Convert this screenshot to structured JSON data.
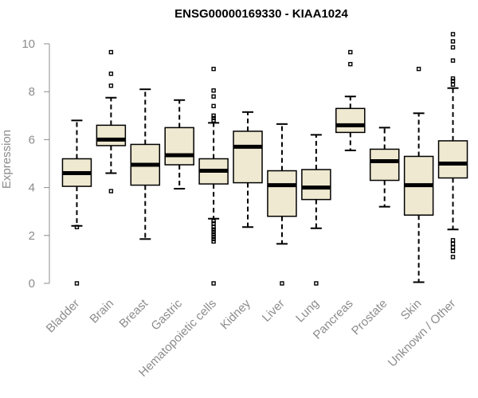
{
  "chart_data": {
    "type": "boxplot",
    "title": "ENSG00000169330 - KIAA1024",
    "ylabel": "Expression",
    "xlabel": "",
    "ylim": [
      0,
      10.4
    ],
    "yticks": [
      0,
      2,
      4,
      6,
      8,
      10
    ],
    "categories": [
      "Bladder",
      "Brain",
      "Breast",
      "Gastric",
      "Hematopoietic cells",
      "Kidney",
      "Liver",
      "Lung",
      "Pancreas",
      "Prostate",
      "Skin",
      "Unknown / Other"
    ],
    "boxes": [
      {
        "q1": 4.05,
        "median": 4.6,
        "q3": 5.2,
        "whisker_low": 2.4,
        "whisker_high": 6.8,
        "outliers": [
          0.0,
          2.35
        ]
      },
      {
        "q1": 5.75,
        "median": 6.0,
        "q3": 6.6,
        "whisker_low": 4.6,
        "whisker_high": 7.75,
        "outliers": [
          3.85,
          8.25,
          8.75,
          9.65
        ]
      },
      {
        "q1": 4.1,
        "median": 4.95,
        "q3": 5.8,
        "whisker_low": 1.85,
        "whisker_high": 8.1,
        "outliers": []
      },
      {
        "q1": 4.95,
        "median": 5.35,
        "q3": 6.5,
        "whisker_low": 3.95,
        "whisker_high": 7.65,
        "outliers": []
      },
      {
        "q1": 4.15,
        "median": 4.7,
        "q3": 5.2,
        "whisker_low": 2.7,
        "whisker_high": 6.7,
        "outliers": [
          0.0,
          1.75,
          1.85,
          1.95,
          2.05,
          2.15,
          2.25,
          2.35,
          2.5,
          2.6,
          6.8,
          6.9,
          7.0,
          7.4,
          7.8,
          8.05,
          8.95
        ]
      },
      {
        "q1": 4.2,
        "median": 5.7,
        "q3": 6.35,
        "whisker_low": 2.35,
        "whisker_high": 7.15,
        "outliers": []
      },
      {
        "q1": 2.8,
        "median": 4.1,
        "q3": 4.7,
        "whisker_low": 1.65,
        "whisker_high": 6.65,
        "outliers": [
          0.0
        ]
      },
      {
        "q1": 3.5,
        "median": 4.0,
        "q3": 4.75,
        "whisker_low": 2.3,
        "whisker_high": 6.2,
        "outliers": [
          0.0
        ]
      },
      {
        "q1": 6.3,
        "median": 6.6,
        "q3": 7.3,
        "whisker_low": 5.55,
        "whisker_high": 7.8,
        "outliers": [
          9.15,
          9.65
        ]
      },
      {
        "q1": 4.3,
        "median": 5.1,
        "q3": 5.6,
        "whisker_low": 3.2,
        "whisker_high": 6.5,
        "outliers": []
      },
      {
        "q1": 2.85,
        "median": 4.1,
        "q3": 5.3,
        "whisker_low": 0.05,
        "whisker_high": 7.1,
        "outliers": [
          8.95
        ]
      },
      {
        "q1": 4.4,
        "median": 5.0,
        "q3": 5.95,
        "whisker_low": 2.25,
        "whisker_high": 8.15,
        "outliers": [
          1.1,
          1.35,
          1.5,
          1.65,
          1.8,
          8.3,
          8.45,
          8.55,
          9.3,
          9.85,
          10.1,
          10.4
        ]
      }
    ],
    "colors": {
      "box_fill": "#efe9d1",
      "line": "#000000",
      "axis": "#8c8c8c"
    },
    "grid": false,
    "legend": "none"
  }
}
